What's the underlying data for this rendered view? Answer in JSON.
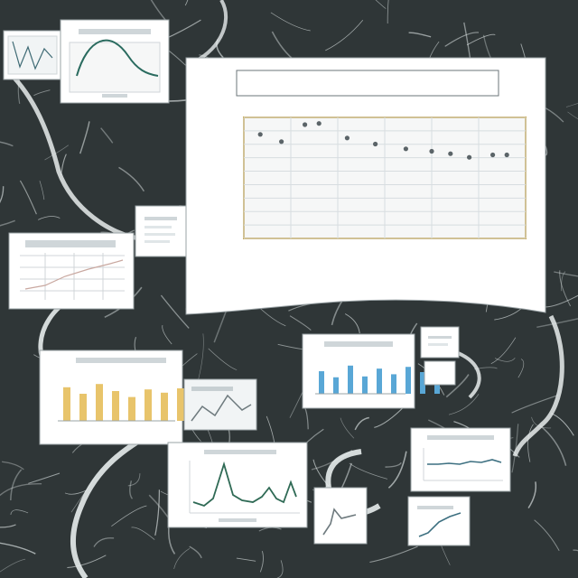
{
  "scene": {
    "background_color": "#2f3637",
    "line_color": "#d9e0e0",
    "cable_color": "#e7ecec",
    "card_bg": "#ffffff",
    "card_border": "#9aa3a6",
    "frame_color": "#c8a54a",
    "accent_teal": "#2a9aa2",
    "accent_gold": "#e8c46b",
    "accent_blue": "#59a7d6"
  },
  "main_card": {
    "title_line1": "",
    "title_line2": "",
    "footer_text": ""
  },
  "chart_data": {
    "type": "scatter",
    "title": "",
    "xlabel": "",
    "ylabel": "",
    "x_ticks": [
      "",
      "",
      "",
      "",
      "",
      "",
      ""
    ],
    "y_ticks": [
      "",
      "",
      "",
      "",
      "",
      "",
      "",
      "",
      "",
      ""
    ],
    "grid": true,
    "points": [
      {
        "x": 0.35,
        "y": 0.86
      },
      {
        "x": 0.8,
        "y": 0.8
      },
      {
        "x": 1.3,
        "y": 0.94
      },
      {
        "x": 1.6,
        "y": 0.95
      },
      {
        "x": 2.2,
        "y": 0.83
      },
      {
        "x": 2.8,
        "y": 0.78
      },
      {
        "x": 3.45,
        "y": 0.74
      },
      {
        "x": 4.0,
        "y": 0.72
      },
      {
        "x": 4.4,
        "y": 0.7
      },
      {
        "x": 4.8,
        "y": 0.67
      },
      {
        "x": 5.3,
        "y": 0.69
      },
      {
        "x": 5.6,
        "y": 0.69
      }
    ]
  },
  "thumbnails": [
    {
      "name": "thumb-top-left",
      "kind": "line"
    },
    {
      "name": "thumb-top-center",
      "kind": "line"
    },
    {
      "name": "thumb-mid-left",
      "kind": "table"
    },
    {
      "name": "thumb-small-mid",
      "kind": "table"
    },
    {
      "name": "thumb-bars-left",
      "kind": "bar"
    },
    {
      "name": "thumb-bars-right",
      "kind": "bar"
    },
    {
      "name": "thumb-line-bottom",
      "kind": "line"
    },
    {
      "name": "thumb-right-mid",
      "kind": "line"
    },
    {
      "name": "thumb-bottom-right",
      "kind": "line"
    },
    {
      "name": "thumb-tiny-right",
      "kind": "table"
    },
    {
      "name": "thumb-small-bottom",
      "kind": "line"
    },
    {
      "name": "thumb-gray-mid",
      "kind": "table"
    }
  ]
}
